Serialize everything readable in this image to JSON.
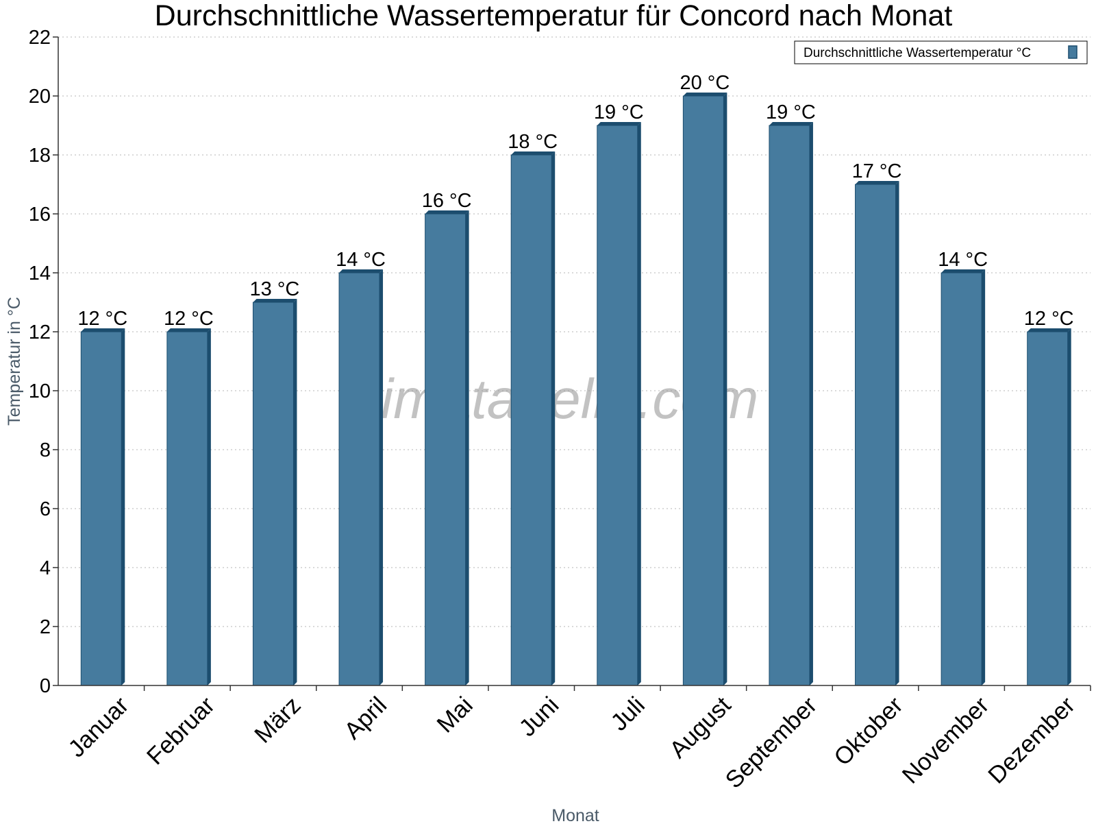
{
  "chart_data": {
    "type": "bar",
    "title": "Durchschnittliche Wassertemperatur für Concord nach Monat",
    "xlabel": "Monat",
    "ylabel": "Temperatur in °C",
    "ylim": [
      0,
      22
    ],
    "ytick_step": 2,
    "grid": "horizontal dotted",
    "legend_position": "top-right",
    "categories": [
      "Januar",
      "Februar",
      "März",
      "April",
      "Mai",
      "Juni",
      "Juli",
      "August",
      "September",
      "Oktober",
      "November",
      "Dezember"
    ],
    "series": [
      {
        "name": "Durchschnittliche Wassertemperatur °C",
        "values": [
          12,
          12,
          13,
          14,
          16,
          18,
          19,
          20,
          19,
          17,
          14,
          12
        ],
        "data_labels": [
          "12 °C",
          "12 °C",
          "13 °C",
          "14 °C",
          "16 °C",
          "18 °C",
          "19 °C",
          "20 °C",
          "19 °C",
          "17 °C",
          "14 °C",
          "12 °C"
        ],
        "color": "#467b9e",
        "edge_color": "#1c4d6e"
      }
    ]
  },
  "watermark": "klimatabelle.com"
}
